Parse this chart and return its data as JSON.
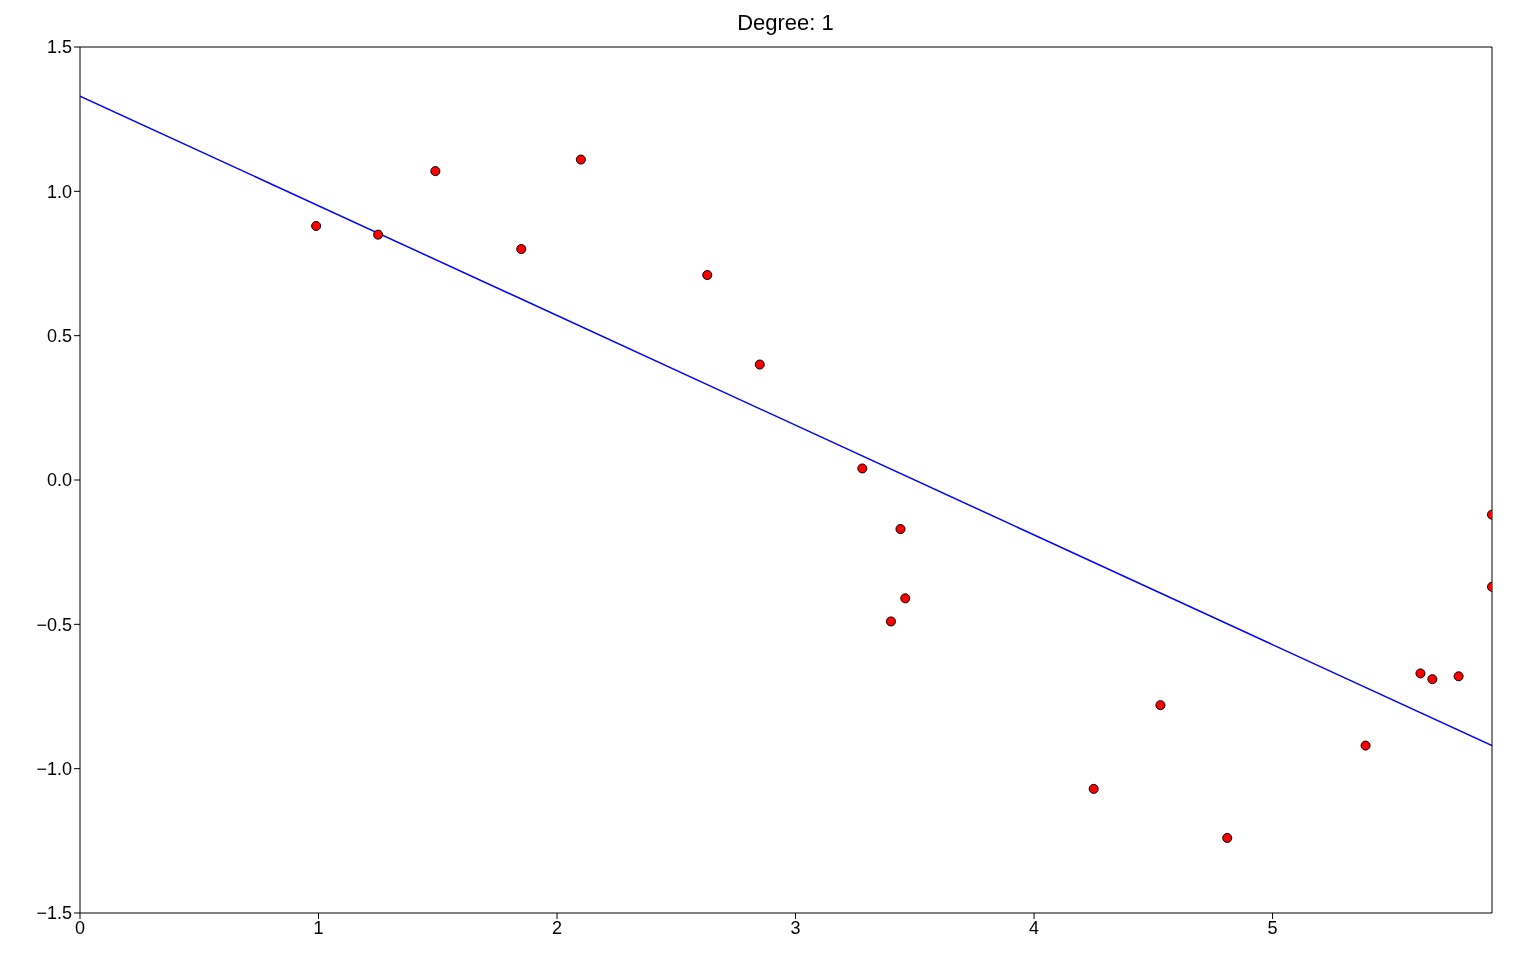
{
  "chart_data": {
    "type": "scatter",
    "title": "Degree: 1",
    "xlim": [
      0,
      5.92
    ],
    "ylim": [
      -1.5,
      1.5
    ],
    "xticks": [
      0,
      1,
      2,
      3,
      4,
      5
    ],
    "yticks": [
      {
        "value": -1.5,
        "label": "−1.5"
      },
      {
        "value": -1,
        "label": "−1.0"
      },
      {
        "value": -0.5,
        "label": "−0.5"
      },
      {
        "value": 0,
        "label": "0.0"
      },
      {
        "value": 0.5,
        "label": "0.5"
      },
      {
        "value": 1,
        "label": "1.0"
      },
      {
        "value": 1.5,
        "label": "1.5"
      }
    ],
    "series": [
      {
        "color": "#ff0000",
        "marker": "circle",
        "x": [
          0.99,
          1.25,
          1.49,
          1.85,
          2.1,
          2.63,
          2.85,
          3.28,
          3.44,
          3.46,
          3.4,
          4.25,
          4.53,
          4.81,
          5.39,
          5.62,
          5.67,
          5.78,
          5.92,
          5.92
        ],
        "values": [
          0.88,
          0.85,
          1.07,
          0.8,
          1.11,
          0.71,
          0.4,
          0.04,
          -0.17,
          -0.41,
          -0.49,
          -1.07,
          -0.78,
          -1.24,
          -0.92,
          -0.67,
          -0.69,
          -0.68,
          -0.12,
          -0.37
        ]
      },
      {
        "type": "line",
        "color": "#0000ff",
        "x": [
          0,
          5.92
        ],
        "values": [
          1.33,
          -0.92
        ]
      }
    ]
  }
}
